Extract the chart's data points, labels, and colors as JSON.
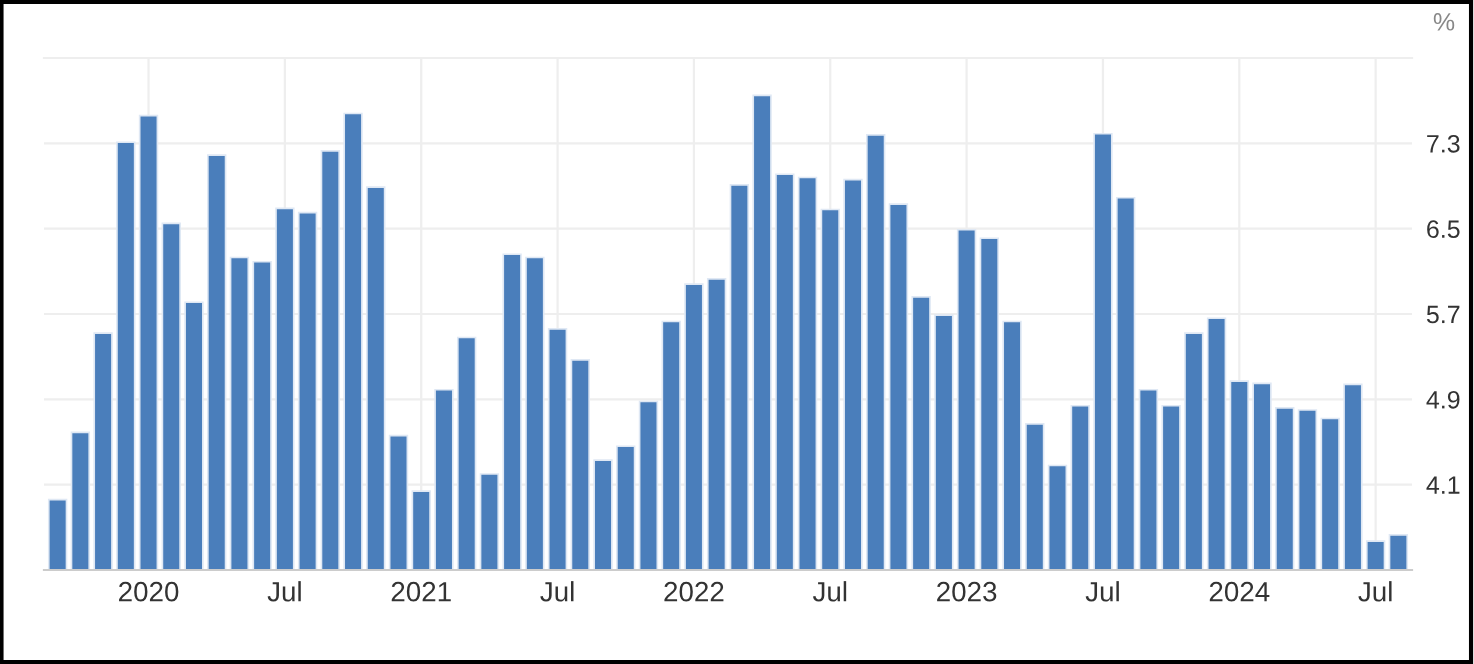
{
  "chart_data": {
    "type": "bar",
    "ylabel": "%",
    "categories": [
      null,
      null,
      null,
      null,
      "2020",
      null,
      null,
      null,
      null,
      null,
      "Jul",
      null,
      null,
      null,
      null,
      null,
      "2021",
      null,
      null,
      null,
      null,
      null,
      "Jul",
      null,
      null,
      null,
      null,
      null,
      "2022",
      null,
      null,
      null,
      null,
      null,
      "Jul",
      null,
      null,
      null,
      null,
      null,
      "2023",
      null,
      null,
      null,
      null,
      null,
      "Jul",
      null,
      null,
      null,
      null,
      null,
      "2024",
      null,
      null,
      null,
      null,
      null,
      "Jul",
      null
    ],
    "values": [
      3.96,
      4.59,
      5.52,
      7.31,
      7.56,
      6.55,
      5.81,
      7.19,
      6.23,
      6.19,
      6.69,
      6.65,
      7.23,
      7.58,
      6.89,
      4.56,
      4.04,
      4.99,
      5.48,
      4.2,
      6.26,
      6.23,
      5.56,
      5.27,
      4.33,
      4.46,
      4.88,
      5.63,
      5.98,
      6.03,
      6.91,
      7.75,
      7.01,
      6.98,
      6.68,
      6.96,
      7.38,
      6.73,
      5.86,
      5.69,
      6.49,
      6.41,
      5.63,
      4.67,
      4.28,
      4.84,
      7.39,
      6.79,
      4.99,
      4.84,
      5.52,
      5.66,
      5.07,
      5.05,
      4.82,
      4.8,
      4.72,
      5.04,
      3.57,
      3.63
    ],
    "color": "#4a7ebb",
    "ylim": [
      3.3,
      8.1
    ],
    "yticks": [
      4.1,
      4.9,
      5.7,
      6.5,
      7.3
    ],
    "grid": true
  }
}
